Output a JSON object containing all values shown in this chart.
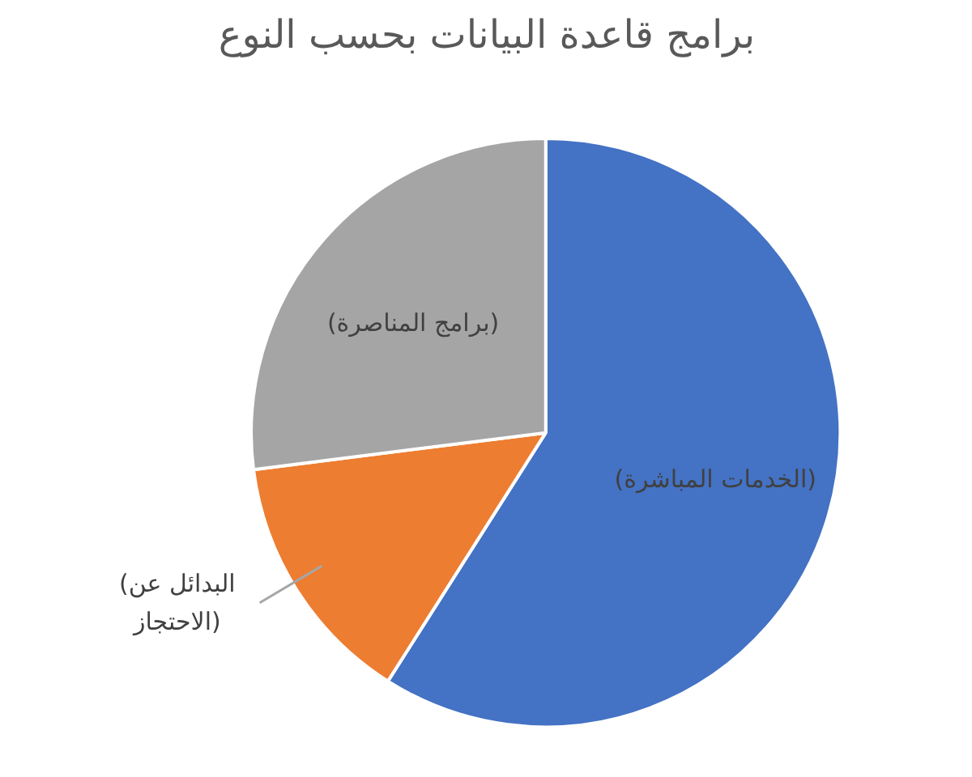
{
  "chart_data": {
    "type": "pie",
    "title": "برامج قاعدة البيانات بحسب النوع",
    "categories": [
      "(الخدمات المباشرة)",
      "(البدائل عن الاحتجاز)",
      "(برامج المناصرة)"
    ],
    "values": [
      59,
      14,
      27
    ],
    "colors": [
      "#4472c4",
      "#ed7d31",
      "#a5a5a5"
    ],
    "legend": false
  }
}
